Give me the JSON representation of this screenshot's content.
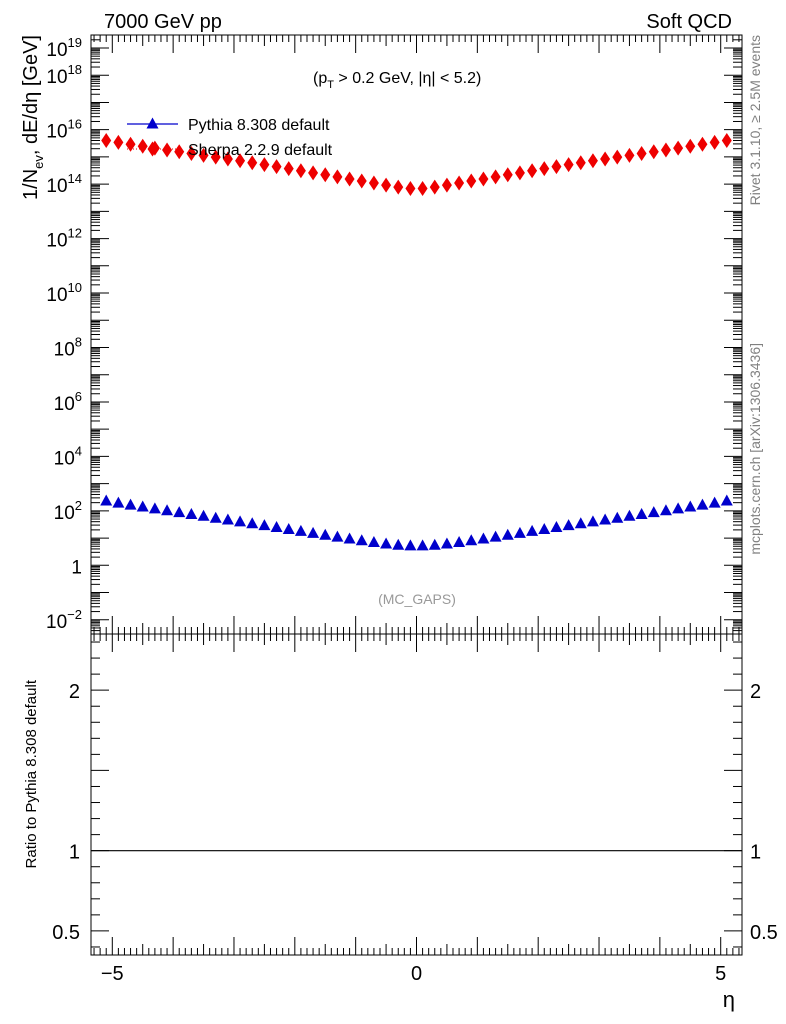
{
  "header": {
    "left": "7000 GeV pp",
    "right": "Soft QCD"
  },
  "side_labels": {
    "rivet": "Rivet 3.1.10, ≥ 2.5M events",
    "mcplots": "mcplots.cern.ch [arXiv:1306.3436]"
  },
  "chart_data": {
    "type": "scatter",
    "title": "",
    "cut_label": {
      "pre": "(p",
      "sub": "T",
      "post": " > 0.2 GeV, |η| < 5.2)"
    },
    "analysis_label": "(MC_GAPS)",
    "xlabel": "η",
    "ylabel": {
      "pre": "1/N",
      "sub": "ev",
      "post": ", dE/dη [GeV]"
    },
    "ratio_ylabel": "Ratio to Pythia 8.308 default",
    "xlim": [
      -5.35,
      5.35
    ],
    "ylim": [
      0.003,
      3e+19
    ],
    "yscale": "log",
    "ratio_ylim": [
      0.35,
      2.35
    ],
    "x_ticks": [
      {
        "v": -5,
        "label": "−5"
      },
      {
        "v": 0,
        "label": "0"
      },
      {
        "v": 5,
        "label": "5"
      }
    ],
    "y_ticks": [
      {
        "v": 0.01,
        "base": "10",
        "exp": "−2"
      },
      {
        "v": 1,
        "base": "1",
        "exp": ""
      },
      {
        "v": 100,
        "base": "10",
        "exp": "2"
      },
      {
        "v": 10000,
        "base": "10",
        "exp": "4"
      },
      {
        "v": 1000000.0,
        "base": "10",
        "exp": "6"
      },
      {
        "v": 100000000.0,
        "base": "10",
        "exp": "8"
      },
      {
        "v": 10000000000.0,
        "base": "10",
        "exp": "10"
      },
      {
        "v": 1000000000000.0,
        "base": "10",
        "exp": "12"
      },
      {
        "v": 100000000000000.0,
        "base": "10",
        "exp": "14"
      },
      {
        "v": 1e+16,
        "base": "10",
        "exp": "16"
      },
      {
        "v": 1e+18,
        "base": "10",
        "exp": "18"
      },
      {
        "v": 1e+19,
        "base": "10",
        "exp": "19"
      }
    ],
    "ratio_ticks": [
      {
        "v": 0.5,
        "label": "0.5"
      },
      {
        "v": 1,
        "label": "1"
      },
      {
        "v": 2,
        "label": "2"
      }
    ],
    "legend_position": "top-left",
    "series": [
      {
        "name": "Pythia 8.308 default",
        "color": "#0000cc",
        "marker": "triangle",
        "x": [
          -5.1,
          -4.9,
          -4.7,
          -4.5,
          -4.3,
          -4.1,
          -3.9,
          -3.7,
          -3.5,
          -3.3,
          -3.1,
          -2.9,
          -2.7,
          -2.5,
          -2.3,
          -2.1,
          -1.9,
          -1.7,
          -1.5,
          -1.3,
          -1.1,
          -0.9,
          -0.7,
          -0.5,
          -0.3,
          -0.1,
          0.1,
          0.3,
          0.5,
          0.7,
          0.9,
          1.1,
          1.3,
          1.5,
          1.7,
          1.9,
          2.1,
          2.3,
          2.5,
          2.7,
          2.9,
          3.1,
          3.3,
          3.5,
          3.7,
          3.9,
          4.1,
          4.3,
          4.5,
          4.7,
          4.9,
          5.1
        ],
        "values": [
          240,
          200,
          170,
          145,
          123,
          105,
          90,
          77,
          66,
          56,
          48,
          41,
          35,
          30,
          25.5,
          21.5,
          18.3,
          15.5,
          13.2,
          11.3,
          9.7,
          8.3,
          7.2,
          6.3,
          5.7,
          5.4,
          5.4,
          5.7,
          6.3,
          7.2,
          8.3,
          9.7,
          11.3,
          13.2,
          15.5,
          18.3,
          21.5,
          25.5,
          30,
          35,
          41,
          48,
          56,
          66,
          77,
          90,
          105,
          123,
          145,
          170,
          200,
          240
        ]
      },
      {
        "name": "Sherpa 2.2.9 default",
        "color": "#ee0000",
        "marker": "diamond",
        "x": [
          -5.1,
          -4.9,
          -4.7,
          -4.5,
          -4.3,
          -4.1,
          -3.9,
          -3.7,
          -3.5,
          -3.3,
          -3.1,
          -2.9,
          -2.7,
          -2.5,
          -2.3,
          -2.1,
          -1.9,
          -1.7,
          -1.5,
          -1.3,
          -1.1,
          -0.9,
          -0.7,
          -0.5,
          -0.3,
          -0.1,
          0.1,
          0.3,
          0.5,
          0.7,
          0.9,
          1.1,
          1.3,
          1.5,
          1.7,
          1.9,
          2.1,
          2.3,
          2.5,
          2.7,
          2.9,
          3.1,
          3.3,
          3.5,
          3.7,
          3.9,
          4.1,
          4.3,
          4.5,
          4.7,
          4.9,
          5.1
        ],
        "values": [
          4000000000000000.0,
          3400000000000000.0,
          2900000000000000.0,
          2450000000000000.0,
          2100000000000000.0,
          1800000000000000.0,
          1550000000000000.0,
          1330000000000000.0,
          1140000000000000.0,
          980000000000000.0,
          840000000000000.0,
          720000000000000.0,
          610000000000000.0,
          520000000000000.0,
          440000000000000.0,
          370000000000000.0,
          310000000000000.0,
          260000000000000.0,
          220000000000000.0,
          185000000000000.0,
          155000000000000.0,
          130000000000000.0,
          110000000000000.0,
          92000000000000.0,
          78000000000000.0,
          69000000000000.0,
          69000000000000.0,
          78000000000000.0,
          92000000000000.0,
          110000000000000.0,
          130000000000000.0,
          155000000000000.0,
          185000000000000.0,
          220000000000000.0,
          260000000000000.0,
          310000000000000.0,
          370000000000000.0,
          440000000000000.0,
          520000000000000.0,
          610000000000000.0,
          720000000000000.0,
          840000000000000.0,
          980000000000000.0,
          1140000000000000.0,
          1330000000000000.0,
          1550000000000000.0,
          1800000000000000.0,
          2100000000000000.0,
          2450000000000000.0,
          2900000000000000.0,
          3400000000000000.0,
          4000000000000000.0
        ]
      }
    ],
    "ratio_series": [
      {
        "name": "Pythia 8.308 default",
        "color": "#000000",
        "values_const": 1
      }
    ]
  }
}
